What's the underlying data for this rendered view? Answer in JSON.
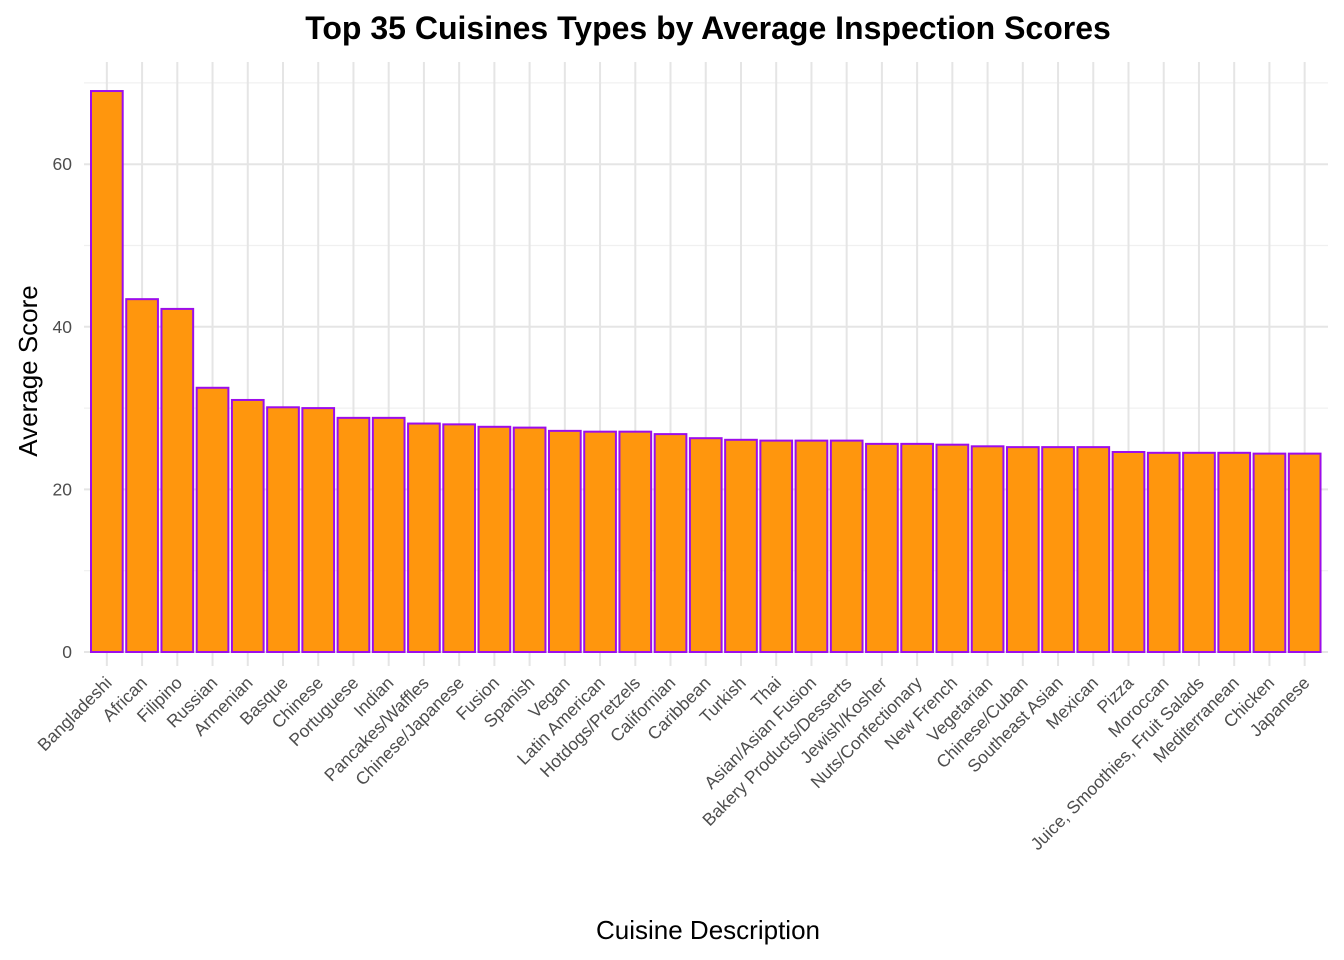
{
  "chart_data": {
    "type": "bar",
    "title": "Top 35 Cuisines Types by Average Inspection Scores",
    "xlabel": "Cuisine Description",
    "ylabel": "Average Score",
    "ylim": [
      0,
      70
    ],
    "yticks": [
      0,
      20,
      40,
      60
    ],
    "grid": true,
    "legend": "none",
    "colors": {
      "bar_fill": "#FF960D",
      "bar_outline": "#9C0DEB",
      "grid_major": "#E5E5E5",
      "grid_minor": "#F0F0F0",
      "tick_text": "#4D4D4D"
    },
    "categories": [
      "Bangladeshi",
      "African",
      "Filipino",
      "Russian",
      "Armenian",
      "Basque",
      "Chinese",
      "Portuguese",
      "Indian",
      "Pancakes/Waffles",
      "Chinese/Japanese",
      "Fusion",
      "Spanish",
      "Vegan",
      "Latin American",
      "Hotdogs/Pretzels",
      "Californian",
      "Caribbean",
      "Turkish",
      "Thai",
      "Asian/Asian Fusion",
      "Bakery Products/Desserts",
      "Jewish/Kosher",
      "Nuts/Confectionary",
      "New French",
      "Vegetarian",
      "Chinese/Cuban",
      "Southeast Asian",
      "Mexican",
      "Pizza",
      "Moroccan",
      "Juice, Smoothies, Fruit Salads",
      "Mediterranean",
      "Chicken",
      "Japanese"
    ],
    "values": [
      69.0,
      43.4,
      42.2,
      32.5,
      31.0,
      30.1,
      30.0,
      28.8,
      28.8,
      28.1,
      28.0,
      27.7,
      27.6,
      27.2,
      27.1,
      27.1,
      26.8,
      26.3,
      26.1,
      26.0,
      26.0,
      26.0,
      25.6,
      25.6,
      25.5,
      25.3,
      25.2,
      25.2,
      25.2,
      24.6,
      24.5,
      24.5,
      24.5,
      24.4,
      24.4
    ]
  }
}
